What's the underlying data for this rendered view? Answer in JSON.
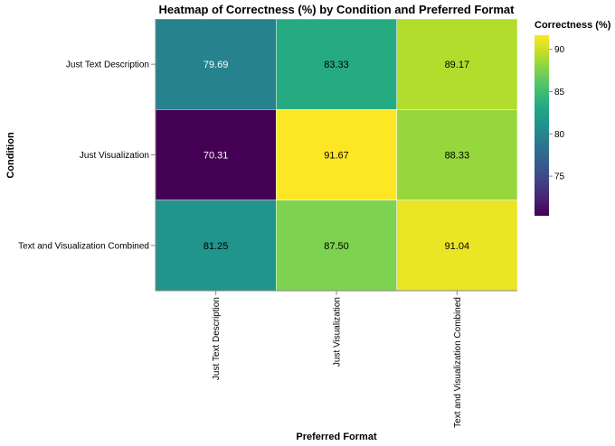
{
  "chart_data": {
    "type": "heatmap",
    "title": "Heatmap of Correctness (%) by Condition and Preferred Format",
    "xlabel": "Preferred Format",
    "ylabel": "Condition",
    "x_categories": [
      "Just Text Description",
      "Just Visualization",
      "Text and Visualization Combined"
    ],
    "y_categories": [
      "Just Text Description",
      "Just Visualization",
      "Text and Visualization Combined"
    ],
    "values": [
      [
        79.69,
        83.33,
        89.17
      ],
      [
        70.31,
        91.67,
        88.33
      ],
      [
        81.25,
        87.5,
        91.04
      ]
    ],
    "value_labels": [
      [
        "79.69",
        "83.33",
        "89.17"
      ],
      [
        "70.31",
        "91.67",
        "88.33"
      ],
      [
        "81.25",
        "87.50",
        "91.04"
      ]
    ],
    "color_scale": {
      "scheme": "viridis",
      "domain": [
        70.31,
        91.67
      ],
      "ticks": [
        75,
        80,
        85,
        90
      ],
      "tick_labels": [
        "75",
        "80",
        "85",
        "90"
      ]
    },
    "legend_title": "Correctness (%)",
    "legend_placement": "right",
    "grid": false
  }
}
